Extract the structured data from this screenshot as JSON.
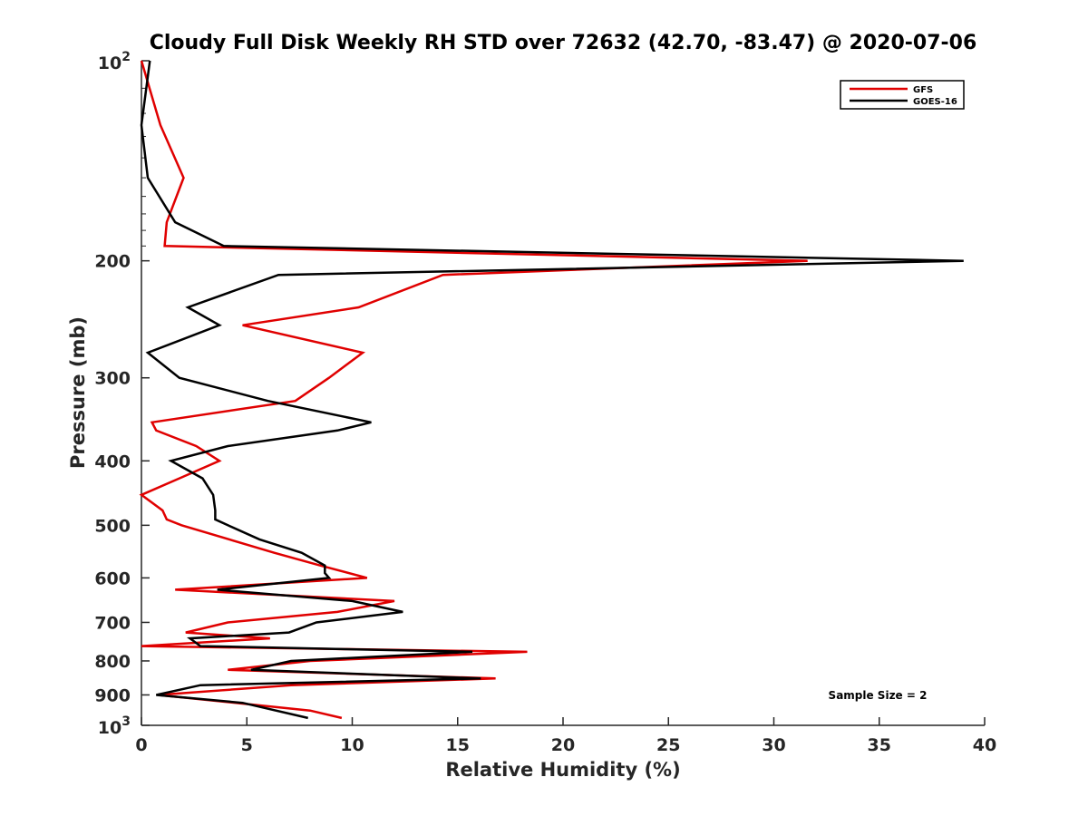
{
  "chart_data": {
    "type": "line",
    "title": "Cloudy Full Disk Weekly RH STD over 72632 (42.70, -83.47) @ 2020-07-06",
    "xlabel": "Relative Humidity (%)",
    "ylabel": "Pressure (mb)",
    "xlim": [
      0,
      40
    ],
    "ylim": [
      100,
      1000
    ],
    "y_scale": "log",
    "y_reversed": true,
    "grid": false,
    "x_ticks": [
      0,
      5,
      10,
      15,
      20,
      25,
      30,
      35,
      40
    ],
    "y_ticks": [
      {
        "value": 100,
        "label": "10",
        "sup": "2"
      },
      {
        "value": 200,
        "label": "200"
      },
      {
        "value": 300,
        "label": "300"
      },
      {
        "value": 400,
        "label": "400"
      },
      {
        "value": 500,
        "label": "500"
      },
      {
        "value": 600,
        "label": "600"
      },
      {
        "value": 700,
        "label": "700"
      },
      {
        "value": 800,
        "label": "800"
      },
      {
        "value": 900,
        "label": "900"
      },
      {
        "value": 1000,
        "label": "10",
        "sup": "3"
      }
    ],
    "legend_position": "top-right",
    "annotation": "Sample Size = 2",
    "series": [
      {
        "name": "GFS",
        "color": "#e00000",
        "points": [
          [
            0.0,
            100
          ],
          [
            0.9,
            125
          ],
          [
            2.0,
            150
          ],
          [
            1.2,
            175
          ],
          [
            1.1,
            190
          ],
          [
            31.6,
            200
          ],
          [
            14.3,
            210
          ],
          [
            10.3,
            235
          ],
          [
            4.8,
            250
          ],
          [
            10.5,
            275
          ],
          [
            8.9,
            300
          ],
          [
            7.3,
            325
          ],
          [
            0.5,
            350
          ],
          [
            0.7,
            360
          ],
          [
            2.6,
            380
          ],
          [
            3.7,
            400
          ],
          [
            1.8,
            425
          ],
          [
            0.0,
            450
          ],
          [
            1.0,
            475
          ],
          [
            1.2,
            490
          ],
          [
            1.9,
            500
          ],
          [
            6.3,
            550
          ],
          [
            8.5,
            575
          ],
          [
            10.7,
            600
          ],
          [
            1.6,
            625
          ],
          [
            12.0,
            650
          ],
          [
            9.3,
            675
          ],
          [
            4.1,
            700
          ],
          [
            2.1,
            725
          ],
          [
            6.1,
            740
          ],
          [
            0.0,
            760
          ],
          [
            18.3,
            775
          ],
          [
            8.0,
            800
          ],
          [
            4.1,
            825
          ],
          [
            16.8,
            850
          ],
          [
            7.1,
            870
          ],
          [
            0.8,
            900
          ],
          [
            8.0,
            950
          ],
          [
            9.5,
            975
          ]
        ]
      },
      {
        "name": "GOES-16",
        "color": "#000000",
        "points": [
          [
            0.4,
            100
          ],
          [
            0.0,
            125
          ],
          [
            0.3,
            150
          ],
          [
            1.6,
            175
          ],
          [
            3.9,
            190
          ],
          [
            39.0,
            200
          ],
          [
            6.5,
            210
          ],
          [
            2.2,
            235
          ],
          [
            3.7,
            250
          ],
          [
            0.3,
            275
          ],
          [
            1.8,
            300
          ],
          [
            6.0,
            325
          ],
          [
            10.9,
            350
          ],
          [
            9.3,
            360
          ],
          [
            4.1,
            380
          ],
          [
            1.4,
            400
          ],
          [
            2.9,
            425
          ],
          [
            3.4,
            450
          ],
          [
            3.5,
            475
          ],
          [
            3.5,
            490
          ],
          [
            4.1,
            500
          ],
          [
            5.6,
            525
          ],
          [
            7.6,
            550
          ],
          [
            8.7,
            575
          ],
          [
            8.7,
            590
          ],
          [
            8.9,
            600
          ],
          [
            3.6,
            625
          ],
          [
            10.0,
            650
          ],
          [
            12.4,
            675
          ],
          [
            8.3,
            700
          ],
          [
            7.0,
            725
          ],
          [
            2.3,
            740
          ],
          [
            2.8,
            760
          ],
          [
            15.7,
            775
          ],
          [
            7.1,
            800
          ],
          [
            5.2,
            825
          ],
          [
            16.1,
            850
          ],
          [
            2.8,
            870
          ],
          [
            0.7,
            900
          ],
          [
            4.8,
            925
          ],
          [
            7.9,
            975
          ]
        ]
      }
    ]
  }
}
